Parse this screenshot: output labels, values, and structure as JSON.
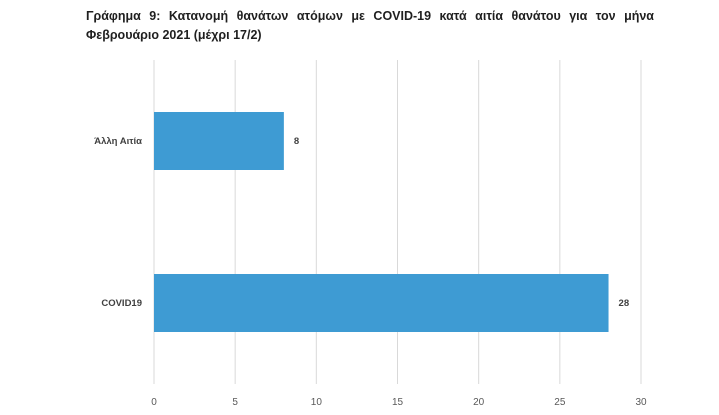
{
  "chart_data": {
    "type": "bar",
    "orientation": "horizontal",
    "title_line1": "Γράφημα 9: Κατανομή θανάτων ατόμων με COVID-19 κατά αιτία θανάτου για τον μήνα",
    "title_line2": "Φεβρουάριο 2021 (μέχρι 17/2)",
    "categories": [
      "Άλλη Αιτία",
      "COVID19"
    ],
    "values": [
      8,
      28
    ],
    "value_labels": [
      "8",
      "28"
    ],
    "xlim": [
      0,
      30
    ],
    "x_ticks": [
      0,
      5,
      10,
      15,
      20,
      25,
      30
    ],
    "x_tick_labels": [
      "0",
      "5",
      "10",
      "15",
      "20",
      "25",
      "30"
    ],
    "grid": "vertical",
    "bar_color": "#3e9bd3",
    "grid_color": "#d9d9d9"
  }
}
